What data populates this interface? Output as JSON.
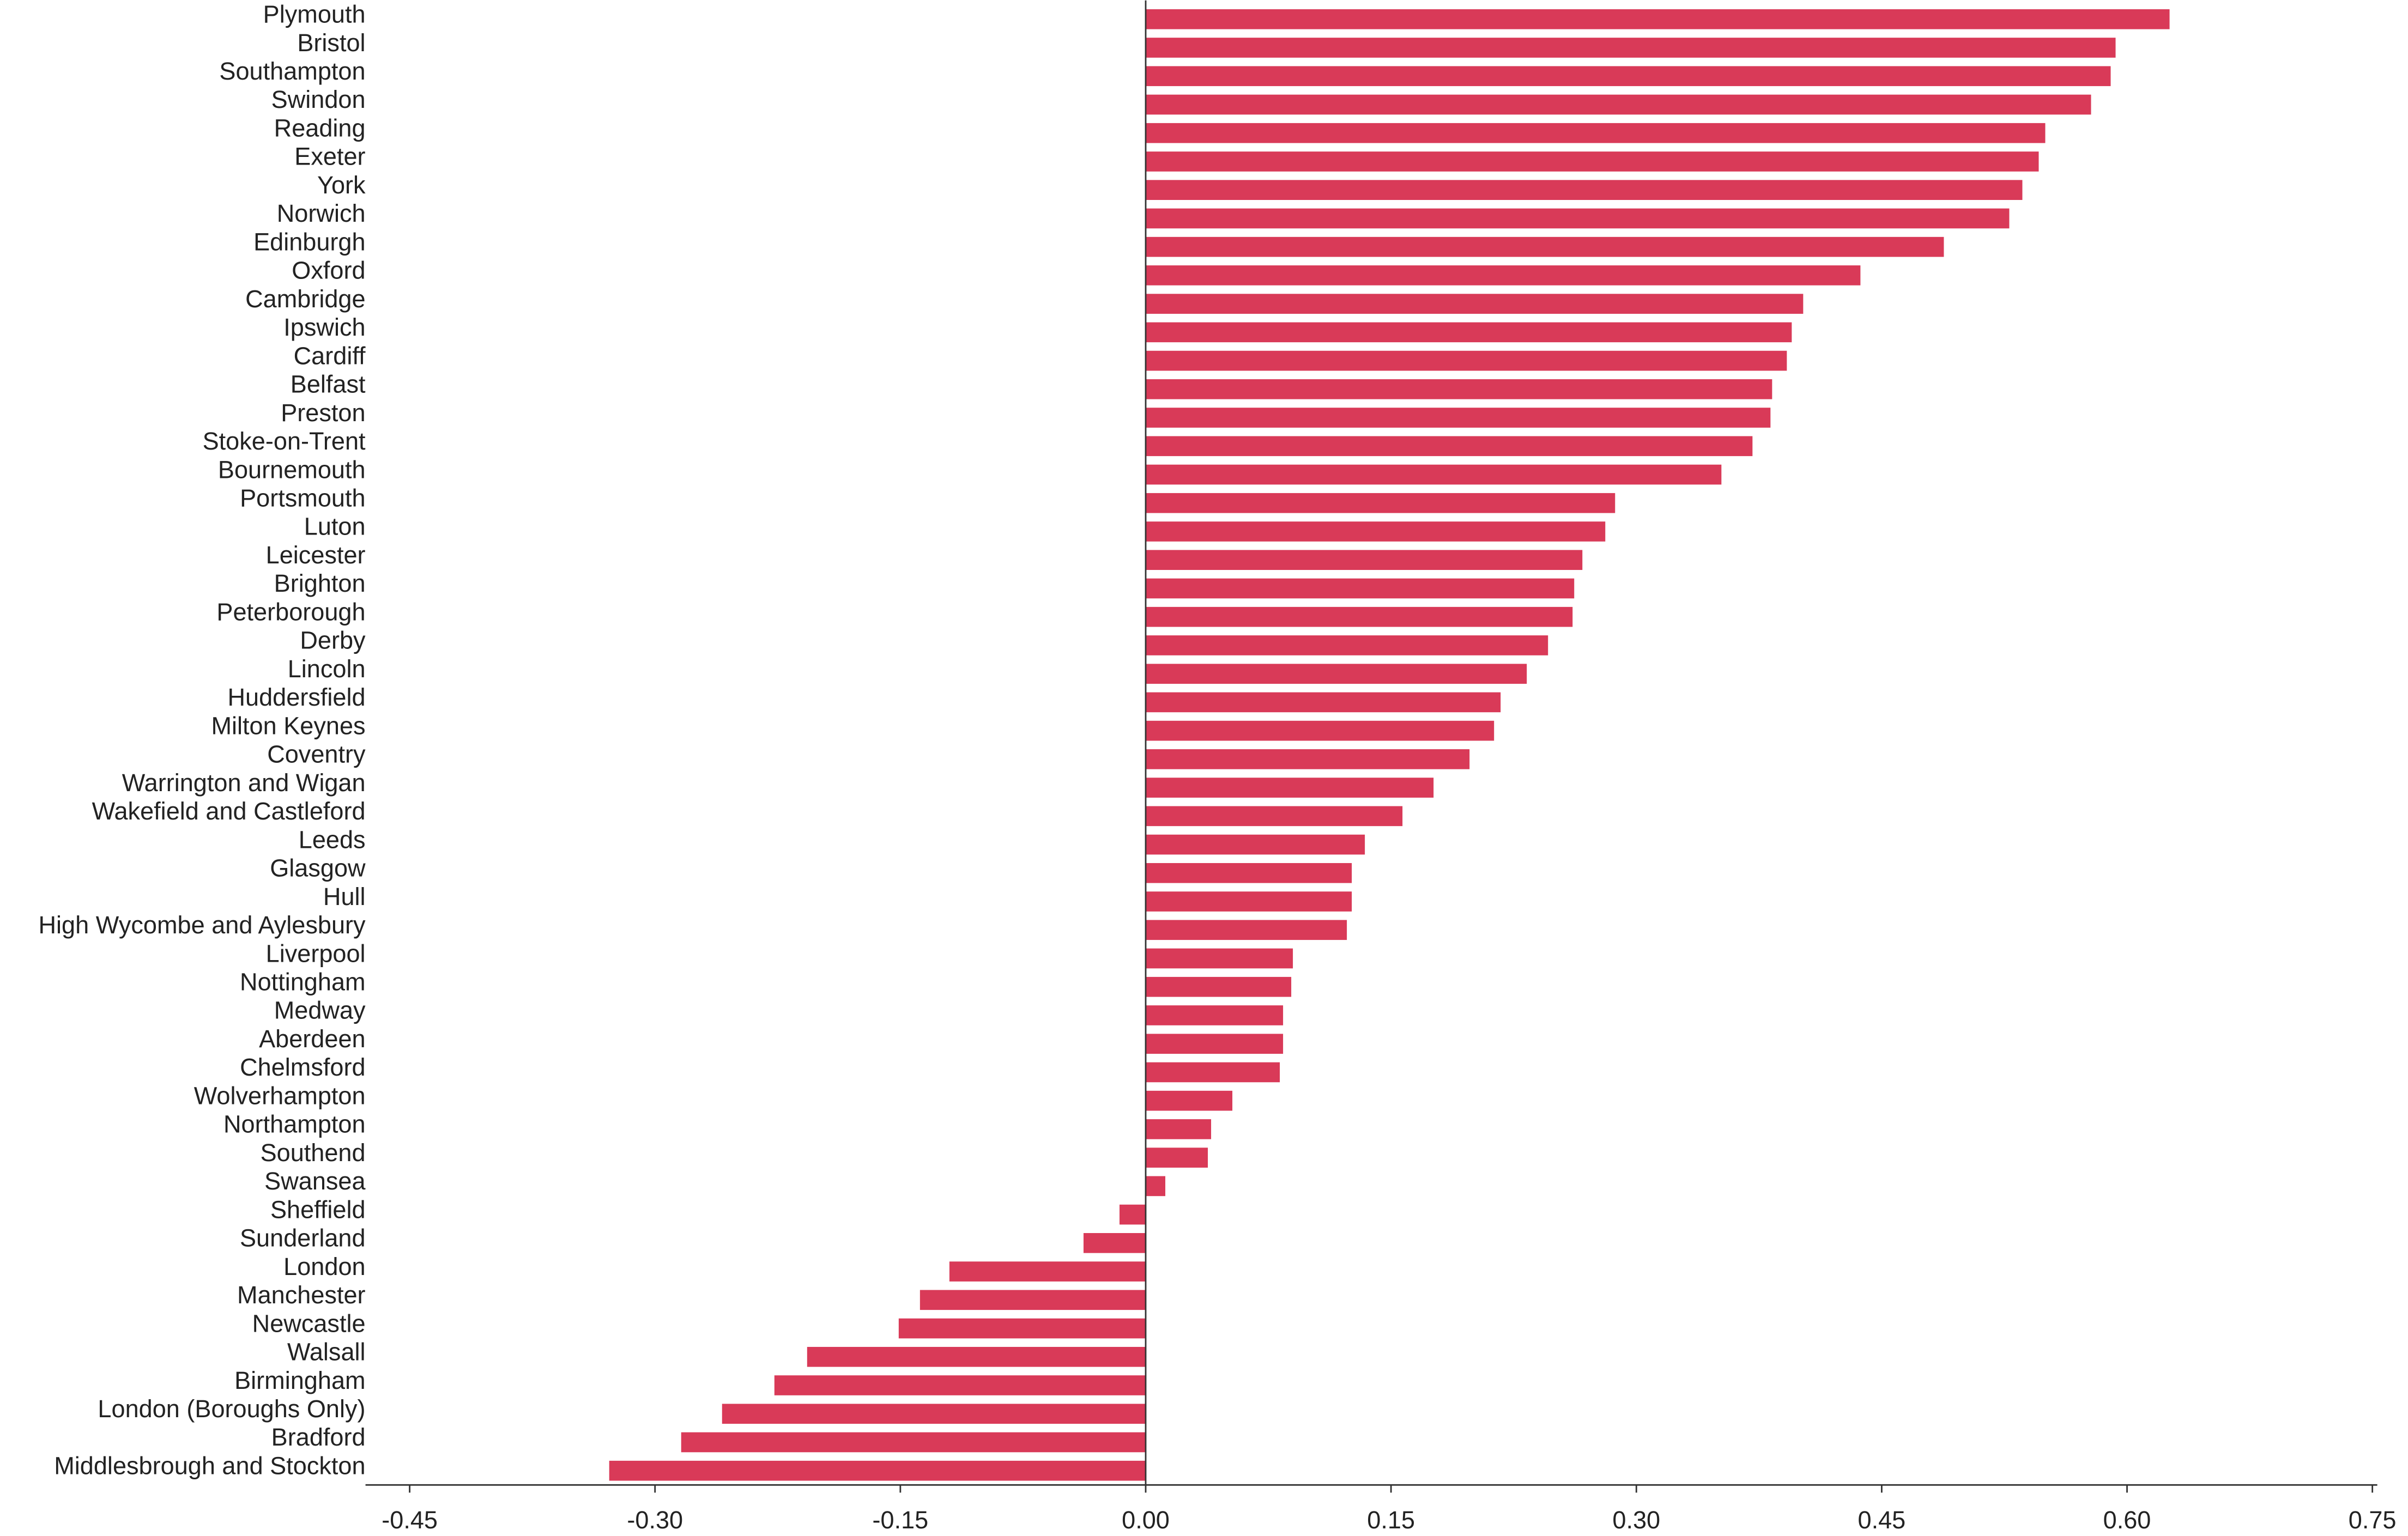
{
  "chart_data": {
    "type": "hbar",
    "color": "#d93a58",
    "categories": [
      "Plymouth",
      "Bristol",
      "Southampton",
      "Swindon",
      "Reading",
      "Exeter",
      "York",
      "Norwich",
      "Edinburgh",
      "Oxford",
      "Cambridge",
      "Ipswich",
      "Cardiff",
      "Belfast",
      "Preston",
      "Stoke-on-Trent",
      "Bournemouth",
      "Portsmouth",
      "Luton",
      "Leicester",
      "Brighton",
      "Peterborough",
      "Derby",
      "Lincoln",
      "Huddersfield",
      "Milton Keynes",
      "Coventry",
      "Warrington and Wigan",
      "Wakefield and Castleford",
      "Leeds",
      "Glasgow",
      "Hull",
      "High Wycombe and Aylesbury",
      "Liverpool",
      "Nottingham",
      "Medway",
      "Aberdeen",
      "Chelmsford",
      "Wolverhampton",
      "Northampton",
      "Southend",
      "Swansea",
      "Sheffield",
      "Sunderland",
      "London",
      "Manchester",
      "Newcastle",
      "Walsall",
      "Birmingham",
      "London (Boroughs Only)",
      "Bradford",
      "Middlesbrough and Stockton"
    ],
    "values": [
      0.626,
      0.593,
      0.59,
      0.578,
      0.55,
      0.546,
      0.536,
      0.528,
      0.488,
      0.437,
      0.402,
      0.395,
      0.392,
      0.383,
      0.382,
      0.371,
      0.352,
      0.287,
      0.281,
      0.267,
      0.262,
      0.261,
      0.246,
      0.233,
      0.217,
      0.213,
      0.198,
      0.176,
      0.157,
      0.134,
      0.126,
      0.126,
      0.123,
      0.09,
      0.089,
      0.084,
      0.084,
      0.082,
      0.053,
      0.04,
      0.038,
      0.012,
      -0.016,
      -0.038,
      -0.12,
      -0.138,
      -0.151,
      -0.207,
      -0.227,
      -0.259,
      -0.284,
      -0.328
    ],
    "xlim": [
      -0.477,
      0.753
    ],
    "xticks": [
      -0.45,
      {
        "value": -0.3,
        "label": "-0.30"
      },
      -0.15,
      {
        "value": 0,
        "label": "0.00"
      },
      0.15,
      {
        "value": 0.3,
        "label": "0.30"
      },
      0.45,
      {
        "value": 0.6,
        "label": "0.60"
      },
      0.75
    ]
  }
}
